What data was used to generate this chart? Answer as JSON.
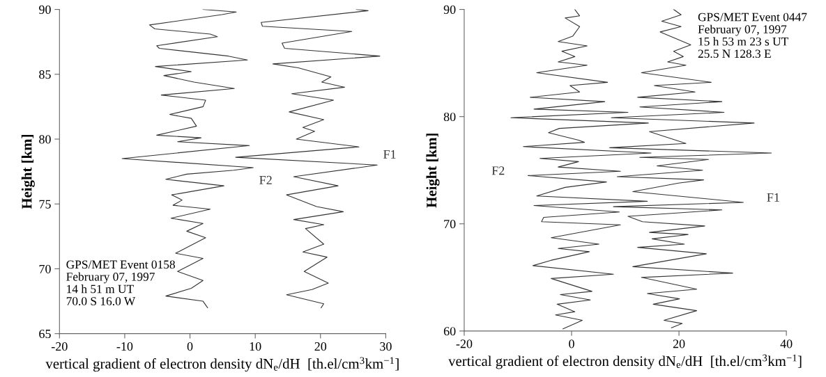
{
  "chart_data": [
    {
      "type": "line",
      "xlabel": "vertical gradient of electron density dN$_{e}$/dH  [th.el/cm$^{3}$km$^{−1}$]",
      "ylabel": "Height [km]",
      "xlim": [
        -20,
        30
      ],
      "xticks": [
        -20,
        -10,
        0,
        10,
        20,
        30
      ],
      "ylim": [
        65,
        90
      ],
      "yticks": [
        65,
        70,
        75,
        80,
        85,
        90
      ],
      "grid": false,
      "legend": false,
      "marker": "none",
      "line_style": "solid",
      "annotations": [
        "GPS/MET Event 0158\nFebruary 07, 1997\n14 h 51 m UT\n70.0 S 16.0 W"
      ],
      "series": [
        {
          "name": "F2",
          "color": "#333333",
          "x": [
            2.0,
            7.1,
            4.9,
            -6.2,
            -5.4,
            3.1,
            4.2,
            -5.1,
            -4.7,
            5.9,
            8.8,
            -5.3,
            0.2,
            -4.0,
            0.6,
            6.8,
            -4.4,
            2.4,
            2.0,
            -3.1,
            0.2,
            1.0,
            -5.1,
            1.7,
            -1.9,
            9.1,
            -10.4,
            9.7,
            6.7,
            -0.5,
            -3.7,
            5.2,
            -2.8,
            -1.2,
            -2.6,
            3.1,
            -2.9,
            2.0,
            -0.5,
            2.4,
            -2.2,
            2.0,
            -1.9,
            2.0,
            0.2,
            -3.7,
            2.0,
            2.7
          ],
          "values": [
            90,
            89.8,
            89.6,
            88.8,
            88.5,
            88.1,
            87.9,
            87.2,
            87.0,
            86.4,
            86.1,
            85.6,
            85.2,
            84.9,
            84.4,
            83.9,
            83.4,
            83.0,
            82.5,
            81.9,
            81.6,
            81.0,
            80.3,
            80.1,
            79.8,
            79.5,
            78.5,
            77.8,
            77.6,
            77.3,
            76.9,
            76.4,
            75.7,
            75.3,
            74.9,
            74.6,
            73.9,
            73.5,
            72.9,
            72.4,
            71.2,
            70.8,
            69.8,
            69.1,
            68.5,
            67.9,
            67.5,
            67.0
          ]
        },
        {
          "name": "F1",
          "color": "#333333",
          "x": [
            25.5,
            27.3,
            10.9,
            11.1,
            24.8,
            14.1,
            14.5,
            29.1,
            12.7,
            16.6,
            21.6,
            20.2,
            23.7,
            15.6,
            22.0,
            15.2,
            20.5,
            17.3,
            19.1,
            16.3,
            25.9,
            7.0,
            28.7,
            15.9,
            22.7,
            14.8,
            19.4,
            23.5,
            15.9,
            20.5,
            17.7,
            20.5,
            17.3,
            21.0,
            17.5,
            21.2,
            18.7,
            14.8,
            20.5,
            20.1
          ],
          "values": [
            90,
            89.9,
            89.0,
            88.7,
            88.3,
            87.4,
            87.0,
            86.4,
            85.8,
            85.5,
            84.8,
            84.4,
            84.0,
            83.5,
            83.0,
            82.1,
            81.5,
            80.9,
            80.6,
            80.0,
            79.4,
            78.6,
            78.0,
            77.1,
            76.4,
            75.7,
            74.8,
            74.4,
            73.8,
            73.4,
            73.1,
            71.9,
            71.3,
            70.9,
            69.8,
            68.9,
            68.4,
            68.0,
            67.3,
            67.0
          ]
        }
      ]
    },
    {
      "type": "line",
      "xlabel": "vertical gradient of electron density dN$_{e}$/dH  [th.el/cm$^{3}$km$^{−1}$]",
      "ylabel": "Height [km]",
      "xlim": [
        -20,
        40
      ],
      "xticks": [
        -20,
        0,
        20,
        40
      ],
      "ylim": [
        60,
        90
      ],
      "yticks": [
        60,
        70,
        80,
        90
      ],
      "grid": false,
      "legend": false,
      "marker": "none",
      "line_style": "solid",
      "annotations": [
        "GPS/MET Event 0447\nFebruary 07, 1997\n15 h 53 m 23 s UT\n25.5 N 128.3 E"
      ],
      "series": [
        {
          "name": "F2",
          "color": "#333333",
          "x": [
            0.6,
            1.5,
            -1.2,
            1.5,
            0.2,
            -2.5,
            2.9,
            -1.8,
            0.6,
            -2.5,
            2.9,
            -6.5,
            6.7,
            -0.3,
            1.5,
            -7.7,
            6.2,
            -7.0,
            10.5,
            -11.3,
            14.3,
            -2.3,
            -4.3,
            1.3,
            2.4,
            -9.0,
            14.8,
            -5.9,
            1.3,
            -2.5,
            9.1,
            -8.1,
            6.5,
            -1.2,
            -6.5,
            14.1,
            -7.0,
            8.9,
            -5.2,
            -5.6,
            9.1,
            -3.8,
            5.1,
            -2.5,
            3.3,
            -3.8,
            -7.2,
            7.8,
            -3.8,
            3.8,
            -2.1,
            3.5,
            -2.7,
            0.6,
            -3.0,
            2.0,
            -1.6
          ],
          "values": [
            90,
            89.4,
            89.2,
            88.4,
            87.5,
            87.0,
            86.6,
            86.1,
            85.6,
            85.1,
            84.8,
            84.1,
            83.2,
            82.9,
            82.3,
            81.8,
            81.4,
            80.7,
            80.4,
            79.9,
            79.4,
            78.9,
            78.5,
            77.8,
            77.6,
            77.2,
            76.6,
            76.1,
            75.8,
            75.3,
            74.9,
            74.5,
            73.9,
            73.4,
            72.6,
            72.1,
            71.7,
            71.1,
            70.6,
            70.2,
            69.9,
            68.7,
            68.1,
            67.7,
            67.4,
            66.6,
            66.1,
            65.3,
            64.9,
            63.7,
            63.4,
            62.9,
            62.5,
            61.8,
            61.5,
            61.0,
            60.2
          ]
        },
        {
          "name": "F1",
          "color": "#333333",
          "x": [
            19.0,
            20.4,
            16.8,
            20.4,
            16.5,
            22.2,
            19.0,
            20.8,
            17.9,
            21.3,
            13.0,
            26.0,
            15.4,
            23.0,
            12.3,
            28.0,
            12.7,
            28.4,
            7.4,
            34.0,
            14.5,
            21.3,
            7.1,
            37.2,
            12.7,
            25.5,
            15.9,
            24.4,
            8.5,
            24.6,
            19.9,
            11.4,
            32.0,
            7.8,
            28.0,
            10.5,
            13.2,
            24.8,
            14.5,
            21.7,
            15.0,
            21.0,
            12.3,
            25.1,
            11.4,
            30.0,
            13.0,
            23.3,
            14.1,
            20.1,
            15.2,
            23.3,
            17.2,
            20.6,
            18.6
          ],
          "values": [
            90,
            89.5,
            88.9,
            88.4,
            87.9,
            86.7,
            86.1,
            85.6,
            85.1,
            84.8,
            84.1,
            83.2,
            82.9,
            82.3,
            81.8,
            81.4,
            80.9,
            80.4,
            79.9,
            79.4,
            78.6,
            77.5,
            77.1,
            76.6,
            76.2,
            76.0,
            75.4,
            75.0,
            74.4,
            74.1,
            73.8,
            73.0,
            72.0,
            71.6,
            71.3,
            70.7,
            70.2,
            69.8,
            69.2,
            69.0,
            68.6,
            68.1,
            67.8,
            67.2,
            66.0,
            65.4,
            65.0,
            63.9,
            63.5,
            63.0,
            62.5,
            61.9,
            61.0,
            60.7,
            60.3
          ]
        }
      ]
    }
  ]
}
